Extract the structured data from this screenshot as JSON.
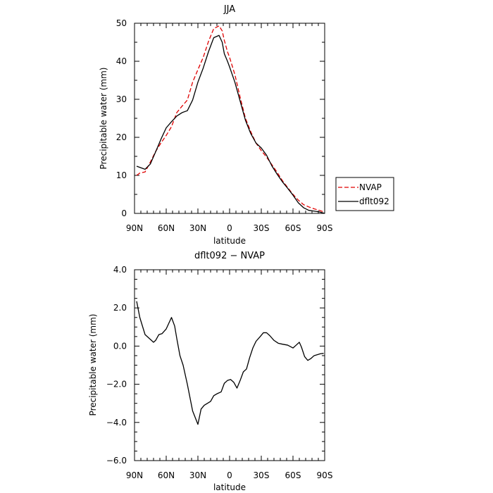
{
  "chart_data": [
    {
      "type": "line",
      "title": "JJA",
      "xlabel": "latitude",
      "ylabel": "Precipitable water (mm)",
      "xlim": [
        90,
        -90
      ],
      "ylim": [
        0,
        50
      ],
      "yticks": [
        0,
        10,
        20,
        30,
        40,
        50
      ],
      "ytick_labels": [
        "0",
        "10",
        "20",
        "30",
        "40",
        "50"
      ],
      "xticks": [
        90,
        60,
        30,
        0,
        -30,
        -60,
        -90
      ],
      "xtick_labels": [
        "90N",
        "60N",
        "30N",
        "0",
        "30S",
        "60S",
        "90S"
      ],
      "legend": "right",
      "series": [
        {
          "name": "NVAP",
          "color": "#e00000",
          "dash": "dashed",
          "x": [
            88,
            85,
            80,
            75,
            70,
            65,
            60,
            55,
            50,
            45,
            40,
            35,
            30,
            25,
            20,
            15,
            10,
            7,
            5,
            2,
            0,
            -5,
            -10,
            -15,
            -20,
            -25,
            -30,
            -35,
            -40,
            -45,
            -50,
            -55,
            -60,
            -65,
            -70,
            -75,
            -80,
            -85,
            -90
          ],
          "values": [
            10.0,
            10.6,
            10.9,
            13.5,
            16.3,
            18.5,
            20.5,
            22.8,
            26.5,
            28.2,
            29.8,
            34.5,
            37.8,
            41.0,
            45.2,
            48.6,
            49.3,
            48.0,
            45.5,
            42.5,
            41.0,
            36.5,
            30.5,
            25.0,
            21.5,
            18.5,
            16.5,
            14.8,
            12.8,
            10.8,
            8.6,
            6.8,
            5.0,
            3.5,
            2.3,
            1.7,
            1.2,
            0.8,
            0.3
          ]
        },
        {
          "name": "dflt092",
          "color": "#000000",
          "dash": "solid",
          "x": [
            88,
            85,
            80,
            75,
            70,
            65,
            60,
            55,
            50,
            45,
            40,
            35,
            30,
            25,
            20,
            15,
            10,
            7,
            5,
            2,
            0,
            -5,
            -10,
            -15,
            -20,
            -25,
            -30,
            -35,
            -40,
            -45,
            -50,
            -55,
            -60,
            -65,
            -70,
            -75,
            -80,
            -85,
            -90
          ],
          "values": [
            12.4,
            12.1,
            11.6,
            13.0,
            16.2,
            19.5,
            22.5,
            24.1,
            25.6,
            26.5,
            27.0,
            29.8,
            34.5,
            38.2,
            42.5,
            46.2,
            46.8,
            45.0,
            42.0,
            40.0,
            38.5,
            34.5,
            29.5,
            24.5,
            21.0,
            18.5,
            17.2,
            15.3,
            12.5,
            10.3,
            8.3,
            6.6,
            4.8,
            2.8,
            1.5,
            0.8,
            0.6,
            0.4,
            0.0
          ]
        }
      ]
    },
    {
      "type": "line",
      "title": "dflt092 − NVAP",
      "xlabel": "latitude",
      "ylabel": "Precipitable water (mm)",
      "xlim": [
        90,
        -90
      ],
      "ylim": [
        -6,
        4
      ],
      "yticks": [
        -6,
        -4,
        -2,
        0,
        2,
        4
      ],
      "ytick_labels": [
        "−6.0",
        "−4.0",
        "−2.0",
        "0.0",
        "2.0",
        "4.0"
      ],
      "xticks": [
        90,
        60,
        30,
        0,
        -30,
        -60,
        -90
      ],
      "xtick_labels": [
        "90N",
        "60N",
        "30N",
        "0",
        "30S",
        "60S",
        "90S"
      ],
      "series": [
        {
          "color": "#000000",
          "dash": "solid",
          "x": [
            88,
            85,
            80,
            75,
            72,
            70,
            67,
            64,
            60,
            55,
            52,
            50,
            47,
            44,
            40,
            35,
            30,
            27,
            24,
            21,
            18,
            15,
            12,
            8,
            5,
            2,
            -1,
            -4,
            -7,
            -10,
            -13,
            -16,
            -19,
            -22,
            -25,
            -29,
            -32,
            -35,
            -38,
            -42,
            -46,
            -50,
            -55,
            -60,
            -63,
            -66,
            -68,
            -71,
            -74,
            -77,
            -80,
            -83,
            -86,
            -89
          ],
          "values": [
            2.35,
            1.5,
            0.6,
            0.35,
            0.2,
            0.3,
            0.6,
            0.65,
            0.9,
            1.5,
            1.05,
            0.4,
            -0.5,
            -1.0,
            -2.0,
            -3.4,
            -4.1,
            -3.3,
            -3.1,
            -3.0,
            -2.9,
            -2.6,
            -2.5,
            -2.4,
            -1.95,
            -1.8,
            -1.75,
            -1.9,
            -2.2,
            -1.8,
            -1.35,
            -1.2,
            -0.6,
            -0.1,
            0.25,
            0.5,
            0.7,
            0.7,
            0.55,
            0.3,
            0.15,
            0.1,
            0.05,
            -0.1,
            0.05,
            0.2,
            -0.05,
            -0.55,
            -0.75,
            -0.65,
            -0.5,
            -0.45,
            -0.4,
            -0.38
          ]
        }
      ]
    }
  ]
}
